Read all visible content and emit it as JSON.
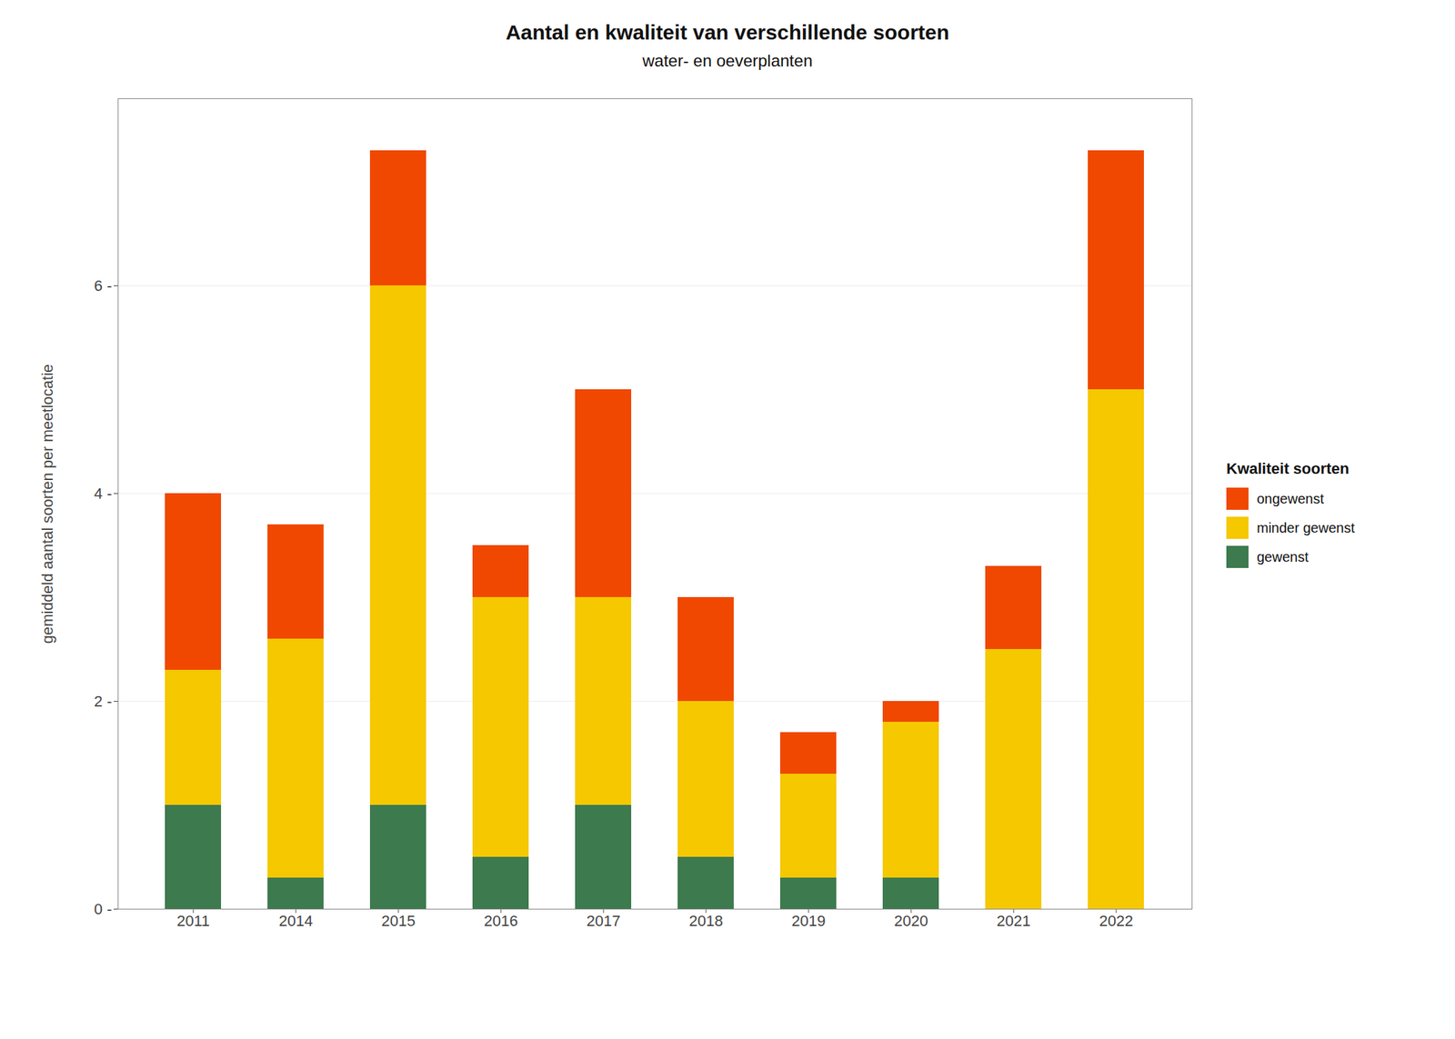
{
  "chart_data": {
    "type": "bar",
    "stacked": true,
    "title": "Aantal en kwaliteit van verschillende soorten",
    "subtitle": "water- en oeverplanten",
    "ylabel": "gemiddeld aantal soorten per meetlocatie",
    "legend_title": "Kwaliteit soorten",
    "categories": [
      "2011",
      "2014",
      "2015",
      "2016",
      "2017",
      "2018",
      "2019",
      "2020",
      "2021",
      "2022"
    ],
    "series": [
      {
        "name": "gewenst",
        "color": "#3d7a4e",
        "values": [
          1.0,
          0.3,
          1.0,
          0.5,
          1.0,
          0.5,
          0.3,
          0.3,
          0.0,
          0.0
        ]
      },
      {
        "name": "minder gewenst",
        "color": "#f5c800",
        "values": [
          1.3,
          2.3,
          5.0,
          2.5,
          2.0,
          1.5,
          1.0,
          1.5,
          2.5,
          5.0
        ]
      },
      {
        "name": "ongewenst",
        "color": "#f04800",
        "values": [
          1.7,
          1.1,
          1.3,
          0.5,
          2.0,
          1.0,
          0.4,
          0.2,
          0.8,
          2.3
        ]
      }
    ],
    "ylim": [
      0,
      7.8
    ],
    "yticks": [
      {
        "value": 0,
        "label": "0 -"
      },
      {
        "value": 2,
        "label": "2 -"
      },
      {
        "value": 4,
        "label": "4 -"
      },
      {
        "value": 6,
        "label": "6 -"
      }
    ],
    "grid": true,
    "legend": "right"
  }
}
